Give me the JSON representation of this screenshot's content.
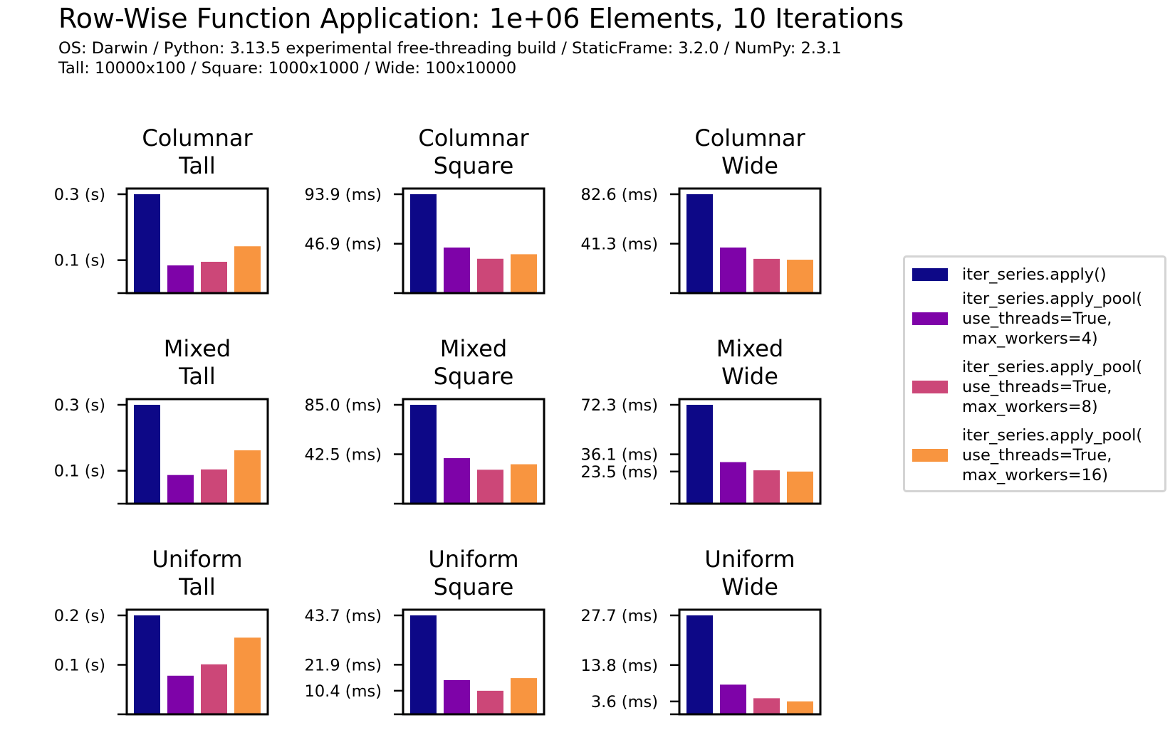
{
  "title": "Row-Wise Function Application: 1e+06 Elements, 10 Iterations",
  "subtitle_lines": [
    "OS: Darwin / Python: 3.13.5 experimental free-threading build / StaticFrame: 3.2.0 / NumPy: 2.3.1",
    "Tall: 10000x100 / Square: 1000x1000 / Wide: 100x10000"
  ],
  "colors": [
    "#0d0887",
    "#7e03a8",
    "#cc4778",
    "#f89540"
  ],
  "legend": [
    "iter_series.apply()",
    "iter_series.apply_pool(\nuse_threads=True,\nmax_workers=4)",
    "iter_series.apply_pool(\nuse_threads=True,\nmax_workers=8)",
    "iter_series.apply_pool(\nuse_threads=True,\nmax_workers=16)"
  ],
  "chart_data": [
    {
      "type": "bar",
      "title": [
        "Columnar",
        "Tall"
      ],
      "series_values": [
        0.3,
        0.084,
        0.095,
        0.142
      ],
      "ylim": [
        0,
        0.3
      ],
      "ticks": [
        {
          "value": 0.3,
          "label": "0.3 (s)"
        },
        {
          "value": 0.1,
          "label": "0.1 (s)"
        }
      ]
    },
    {
      "type": "bar",
      "title": [
        "Columnar",
        "Square"
      ],
      "series_values": [
        93.9,
        43.3,
        32.6,
        36.9
      ],
      "ylim": [
        0,
        93.9
      ],
      "ticks": [
        {
          "value": 93.9,
          "label": "93.9 (ms)"
        },
        {
          "value": 46.9,
          "label": "46.9 (ms)"
        }
      ]
    },
    {
      "type": "bar",
      "title": [
        "Columnar",
        "Wide"
      ],
      "series_values": [
        82.6,
        38.1,
        28.6,
        27.9
      ],
      "ylim": [
        0,
        82.6
      ],
      "ticks": [
        {
          "value": 82.6,
          "label": "82.6 (ms)"
        },
        {
          "value": 41.3,
          "label": "41.3 (ms)"
        }
      ]
    },
    {
      "type": "bar",
      "title": [
        "Mixed",
        "Tall"
      ],
      "series_values": [
        0.3,
        0.087,
        0.104,
        0.162
      ],
      "ylim": [
        0,
        0.3
      ],
      "ticks": [
        {
          "value": 0.3,
          "label": "0.3 (s)"
        },
        {
          "value": 0.1,
          "label": "0.1 (s)"
        }
      ]
    },
    {
      "type": "bar",
      "title": [
        "Mixed",
        "Square"
      ],
      "series_values": [
        85.0,
        39.2,
        29.2,
        33.9
      ],
      "ylim": [
        0,
        85.0
      ],
      "ticks": [
        {
          "value": 85.0,
          "label": "85.0 (ms)"
        },
        {
          "value": 42.5,
          "label": "42.5 (ms)"
        }
      ]
    },
    {
      "type": "bar",
      "title": [
        "Mixed",
        "Wide"
      ],
      "series_values": [
        72.3,
        30.4,
        24.4,
        23.5
      ],
      "ylim": [
        0,
        72.3
      ],
      "ticks": [
        {
          "value": 72.3,
          "label": "72.3 (ms)"
        },
        {
          "value": 36.1,
          "label": "36.1 (ms)"
        },
        {
          "value": 23.5,
          "label": "23.5 (ms)"
        }
      ]
    },
    {
      "type": "bar",
      "title": [
        "Uniform",
        "Tall"
      ],
      "series_values": [
        0.2,
        0.078,
        0.101,
        0.155
      ],
      "ylim": [
        0,
        0.2
      ],
      "ticks": [
        {
          "value": 0.2,
          "label": "0.2 (s)"
        },
        {
          "value": 0.1,
          "label": "0.1 (s)"
        }
      ]
    },
    {
      "type": "bar",
      "title": [
        "Uniform",
        "Square"
      ],
      "series_values": [
        43.7,
        15.1,
        10.4,
        16.0
      ],
      "ylim": [
        0,
        43.7
      ],
      "ticks": [
        {
          "value": 43.7,
          "label": "43.7 (ms)"
        },
        {
          "value": 21.9,
          "label": "21.9 (ms)"
        },
        {
          "value": 10.4,
          "label": "10.4 (ms)"
        }
      ]
    },
    {
      "type": "bar",
      "title": [
        "Uniform",
        "Wide"
      ],
      "series_values": [
        27.7,
        8.3,
        4.5,
        3.6
      ],
      "ylim": [
        0,
        27.7
      ],
      "ticks": [
        {
          "value": 27.7,
          "label": "27.7 (ms)"
        },
        {
          "value": 13.8,
          "label": "13.8 (ms)"
        },
        {
          "value": 3.6,
          "label": "3.6 (ms)"
        }
      ]
    }
  ]
}
